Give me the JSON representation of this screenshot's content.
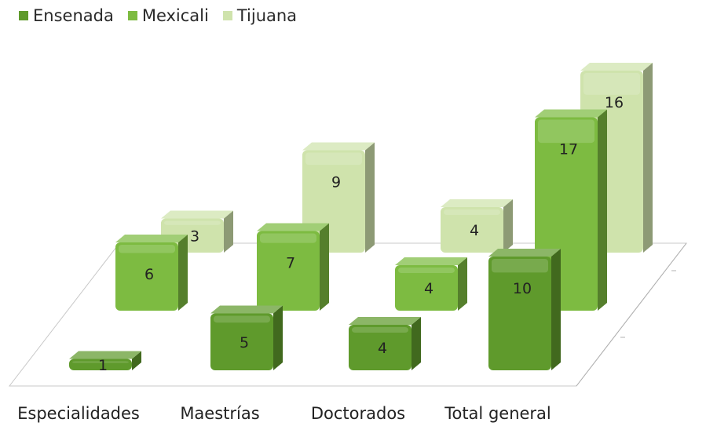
{
  "chart_data": {
    "type": "bar",
    "title": "",
    "xlabel": "",
    "ylabel": "",
    "categories": [
      "Especialidades",
      "Maestrías",
      "Doctorados",
      "Total general"
    ],
    "series": [
      {
        "name": "Ensenada",
        "values": [
          1,
          5,
          4,
          10
        ],
        "color": "#5f9a2c"
      },
      {
        "name": "Mexicali",
        "values": [
          6,
          7,
          4,
          17
        ],
        "color": "#7dbb41"
      },
      {
        "name": "Tijuana",
        "values": [
          3,
          9,
          4,
          16
        ],
        "color": "#cfe3ac"
      }
    ],
    "ylim": [
      0,
      18
    ],
    "grid": false,
    "legend_position": "top-left",
    "style": "3d-column"
  }
}
